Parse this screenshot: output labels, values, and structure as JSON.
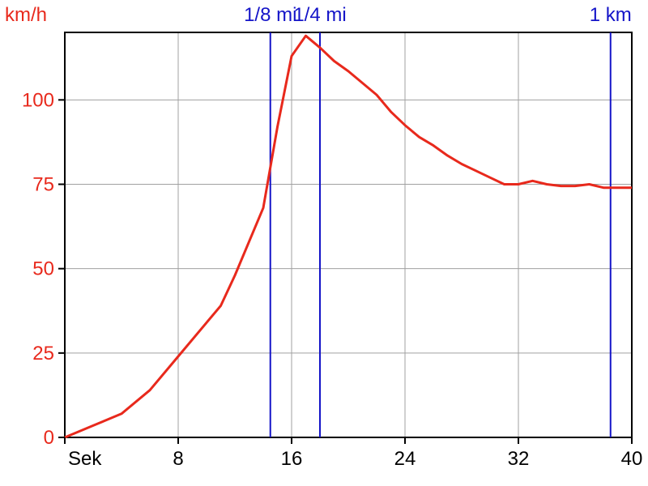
{
  "chart_data": {
    "type": "line",
    "title": "",
    "ylabel": "km/h",
    "xlabel": "Sek",
    "xlim": [
      0,
      40
    ],
    "ylim": [
      0,
      120
    ],
    "xticks": [
      0,
      8,
      16,
      24,
      32,
      40
    ],
    "xtick_labels": [
      "Sek",
      "8",
      "16",
      "24",
      "32",
      "40"
    ],
    "yticks": [
      0,
      25,
      50,
      75,
      100
    ],
    "ytick_labels": [
      "0",
      "25",
      "50",
      "75",
      "100"
    ],
    "grid": true,
    "colors": {
      "series": "#e8291c",
      "markers": "#1414c8",
      "grid": "#a0a0a0",
      "axis": "#000000"
    },
    "series": [
      {
        "x": [
          0,
          2,
          4,
          6,
          8,
          10,
          11,
          12,
          13,
          14,
          15,
          16,
          17,
          18,
          19,
          20,
          21,
          22,
          23,
          24,
          25,
          26,
          27,
          28,
          29,
          30,
          31,
          32,
          33,
          34,
          35,
          36,
          37,
          38,
          39,
          40
        ],
        "y": [
          0,
          3.5,
          7,
          14,
          24,
          34,
          39,
          48,
          58,
          68,
          92,
          113,
          119,
          115.5,
          111.5,
          108.5,
          105,
          101.5,
          96.5,
          92.5,
          89,
          86.5,
          83.5,
          81,
          79,
          77,
          75,
          75,
          76,
          75,
          74.5,
          74.5,
          75,
          74,
          74,
          74
        ]
      }
    ],
    "markers": [
      {
        "label": "1/8 mi",
        "x": 14.5
      },
      {
        "label": "1/4 mi",
        "x": 18
      },
      {
        "label": "1 km",
        "x": 38.5
      }
    ]
  }
}
